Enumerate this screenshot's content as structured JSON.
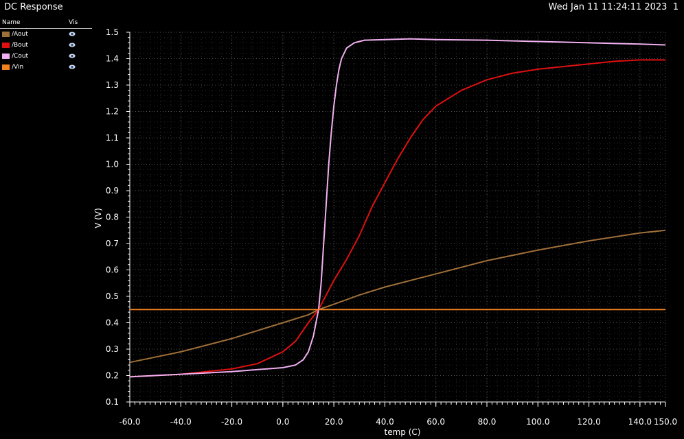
{
  "window": {
    "title": "DC Response",
    "timestamp": "Wed Jan 11 11:24:11 2023  1"
  },
  "legend": {
    "name_header": "Name",
    "vis_header": "Vis",
    "items": [
      {
        "label": "/Aout",
        "color": "#a0703a",
        "visible_icon": "eye-icon"
      },
      {
        "label": "/Bout",
        "color": "#e01010",
        "visible_icon": "eye-icon"
      },
      {
        "label": "/Cout",
        "color": "#f0b0f0",
        "visible_icon": "eye-icon"
      },
      {
        "label": "/Vin",
        "color": "#f08020",
        "visible_icon": "eye-icon"
      }
    ]
  },
  "chart_data": {
    "type": "line",
    "background": "#000000",
    "grid": true,
    "xlabel": "temp (C)",
    "ylabel": "V (V)",
    "xlim": [
      -60,
      150
    ],
    "ylim": [
      0.1,
      1.5
    ],
    "x_ticks": [
      "-60.0",
      "-40.0",
      "-20.0",
      "0.0",
      "20.0",
      "40.0",
      "60.0",
      "80.0",
      "100.0",
      "120.0",
      "140.0",
      "150.0"
    ],
    "y_ticks": [
      "0.1",
      "0.2",
      "0.3",
      "0.4",
      "0.5",
      "0.6",
      "0.7",
      "0.8",
      "0.9",
      "1.0",
      "1.1",
      "1.2",
      "1.3",
      "1.4",
      "1.5"
    ],
    "series": [
      {
        "name": "/Aout",
        "color": "#a0703a",
        "x": [
          -60,
          -40,
          -20,
          0,
          10,
          14,
          20,
          30,
          40,
          60,
          80,
          100,
          120,
          140,
          150
        ],
        "y": [
          0.25,
          0.29,
          0.34,
          0.4,
          0.43,
          0.45,
          0.47,
          0.505,
          0.535,
          0.585,
          0.635,
          0.675,
          0.71,
          0.74,
          0.75
        ]
      },
      {
        "name": "/Bout",
        "color": "#e01010",
        "x": [
          -60,
          -40,
          -20,
          -10,
          0,
          5,
          10,
          14,
          20,
          25,
          30,
          35,
          40,
          45,
          50,
          55,
          60,
          70,
          80,
          90,
          100,
          110,
          120,
          130,
          140,
          150
        ],
        "y": [
          0.195,
          0.205,
          0.225,
          0.245,
          0.29,
          0.33,
          0.4,
          0.45,
          0.56,
          0.64,
          0.73,
          0.84,
          0.93,
          1.02,
          1.1,
          1.17,
          1.22,
          1.28,
          1.32,
          1.345,
          1.36,
          1.37,
          1.38,
          1.39,
          1.395,
          1.395
        ]
      },
      {
        "name": "/Cout",
        "color": "#f0b0f0",
        "x": [
          -60,
          -40,
          -20,
          0,
          5,
          8,
          10,
          12,
          13,
          14,
          15,
          16,
          17,
          18,
          19,
          20,
          21,
          22,
          23,
          25,
          28,
          32,
          40,
          50,
          60,
          80,
          100,
          120,
          140,
          150
        ],
        "y": [
          0.195,
          0.205,
          0.215,
          0.23,
          0.24,
          0.26,
          0.29,
          0.35,
          0.4,
          0.45,
          0.55,
          0.7,
          0.85,
          1.0,
          1.12,
          1.22,
          1.3,
          1.36,
          1.4,
          1.44,
          1.46,
          1.47,
          1.472,
          1.475,
          1.472,
          1.47,
          1.465,
          1.46,
          1.455,
          1.452
        ]
      },
      {
        "name": "/Vin",
        "color": "#f08020",
        "x": [
          -60,
          150
        ],
        "y": [
          0.45,
          0.45
        ]
      }
    ]
  }
}
